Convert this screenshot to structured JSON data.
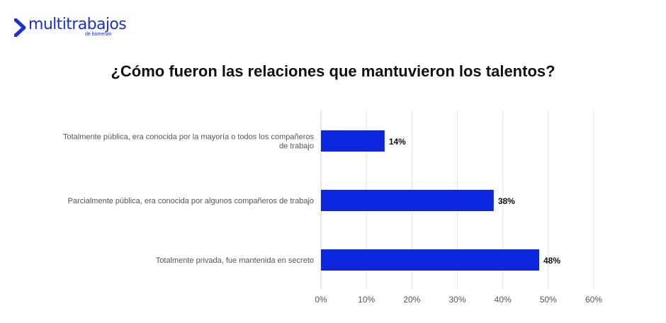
{
  "brand": {
    "name": "multitrabajos",
    "tagline": "de bumeran",
    "color": "#1a2fd6"
  },
  "chart_data": {
    "type": "bar",
    "orientation": "horizontal",
    "title": "¿Cómo fueron las relaciones que mantuvieron los talentos?",
    "categories": [
      [
        "Totalmente pública, era conocida por la mayoría o todos los compañeros",
        "de trabajo"
      ],
      [
        "Parcialmente pública, era conocida por algunos compañeros de trabajo"
      ],
      [
        "Totalmente privada, fue mantenida en secreto"
      ]
    ],
    "values": [
      14,
      38,
      48
    ],
    "data_labels": [
      "14%",
      "38%",
      "48%"
    ],
    "xlim": [
      0,
      60
    ],
    "xticks": [
      0,
      10,
      20,
      30,
      40,
      50,
      60
    ],
    "xtick_labels": [
      "0%",
      "10%",
      "20%",
      "30%",
      "40%",
      "50%",
      "60%"
    ],
    "grid": true,
    "bar_color": "#0d27e0"
  }
}
